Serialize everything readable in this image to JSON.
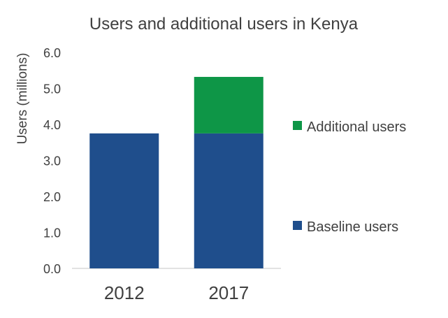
{
  "chart_data": {
    "type": "bar",
    "stacked": true,
    "title": "Users and additional users in Kenya",
    "ylabel": "Users (millions)",
    "xlabel": "",
    "categories": [
      "2012",
      "2017"
    ],
    "series": [
      {
        "name": "Baseline users",
        "values": [
          3.75,
          3.75
        ],
        "color": "#1f4e8c"
      },
      {
        "name": "Additional users",
        "values": [
          0.0,
          1.57
        ],
        "color": "#0e9647"
      }
    ],
    "ylim": [
      0,
      6
    ],
    "yticks": [
      "0.0",
      "1.0",
      "2.0",
      "3.0",
      "4.0",
      "5.0",
      "6.0"
    ],
    "grid": false,
    "legend": "right"
  }
}
